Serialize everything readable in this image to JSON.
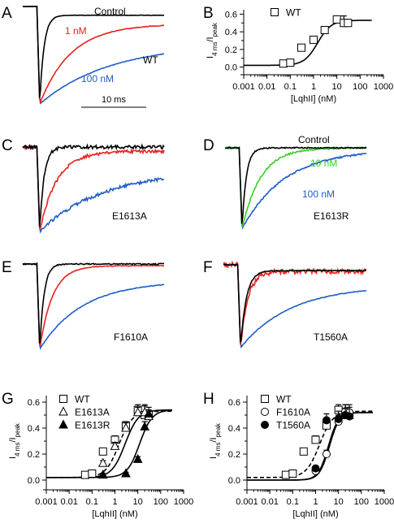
{
  "panels": [
    {
      "letter": "A",
      "cell_label": "WT",
      "trace_labels": [
        {
          "text": "Control",
          "color": "#000000"
        },
        {
          "text": "1 nM",
          "color": "#e8211c"
        },
        {
          "text": "100 nM",
          "color": "#1f5ec8"
        }
      ],
      "scale_bar": "10 ms"
    },
    {
      "letter": "C",
      "cell_label": "E1613A",
      "trace_labels": []
    },
    {
      "letter": "D",
      "cell_label": "E1613R",
      "trace_labels": [
        {
          "text": "Control",
          "color": "#000000"
        },
        {
          "text": "10 nM",
          "color": "#33d11f"
        },
        {
          "text": "100 nM",
          "color": "#1f5ec8"
        }
      ]
    },
    {
      "letter": "E",
      "cell_label": "F1610A",
      "trace_labels": []
    },
    {
      "letter": "F",
      "cell_label": "T1560A",
      "trace_labels": []
    }
  ],
  "colors": {
    "control": "#000000",
    "low": "#e8211c",
    "low_green": "#33d11f",
    "high": "#1f5ec8"
  },
  "chart_data": [
    {
      "panel": "B",
      "type": "scatter",
      "title": "",
      "xlabel": "[LqhII] (nM)",
      "ylabel": "I4 ms/Ipeak",
      "ylabel_main": "I",
      "ylabel_sub1": "4 ms",
      "ylabel_mid": "/I",
      "ylabel_sub2": "peak",
      "xscale": "log",
      "xlim": [
        0.001,
        1000
      ],
      "ylim": [
        -0.05,
        0.65
      ],
      "xticks": [
        "0.001",
        "0.01",
        "0.1",
        "1",
        "10",
        "100",
        "1000"
      ],
      "yticks": [
        "0.0",
        "0.2",
        "0.4",
        "0.6"
      ],
      "legend": "top-left",
      "series": [
        {
          "name": "WT",
          "marker": "open-square",
          "fit": "solid",
          "fit_params": {
            "base": 0.02,
            "top": 0.53,
            "ec50": 1.5,
            "hill": 1.5
          },
          "x": [
            0.05,
            0.1,
            0.3,
            1,
            3,
            10,
            20,
            30
          ],
          "y": [
            0.04,
            0.05,
            0.22,
            0.31,
            0.42,
            0.54,
            0.5,
            0.5
          ],
          "err": [
            0.01,
            0.01,
            0.02,
            0.03,
            0.03,
            0.04,
            0.08,
            0.04
          ]
        }
      ]
    },
    {
      "panel": "G",
      "type": "scatter",
      "title": "",
      "xlabel": "[LqhII] (nM)",
      "ylabel": "I4 ms/Ipeak",
      "ylabel_main": "I",
      "ylabel_sub1": "4 ms",
      "ylabel_mid": "/I",
      "ylabel_sub2": "peak",
      "xscale": "log",
      "xlim": [
        0.001,
        1000
      ],
      "ylim": [
        -0.05,
        0.65
      ],
      "xticks": [
        "0.001",
        "0.01",
        "0.1",
        "1",
        "10",
        "100",
        "1000"
      ],
      "yticks": [
        "0.0",
        "0.2",
        "0.4",
        "0.6"
      ],
      "legend": "top-left",
      "series": [
        {
          "name": "WT",
          "marker": "open-square",
          "fit": "dashed",
          "fit_params": {
            "base": 0.02,
            "top": 0.53,
            "ec50": 1.5,
            "hill": 1.5
          },
          "x": [
            0.05,
            0.1,
            0.3,
            1,
            3,
            10,
            20,
            30
          ],
          "y": [
            0.04,
            0.05,
            0.22,
            0.31,
            0.42,
            0.54,
            0.5,
            0.5
          ],
          "err": [
            0.01,
            0.01,
            0.02,
            0.03,
            0.03,
            0.04,
            0.08,
            0.04
          ]
        },
        {
          "name": "E1613A",
          "marker": "open-triangle",
          "fit": "solid",
          "fit_params": {
            "base": 0.02,
            "top": 0.54,
            "ec50": 2.8,
            "hill": 1.5
          },
          "x": [
            0.3,
            1,
            3,
            10,
            20,
            30
          ],
          "y": [
            0.13,
            0.26,
            0.4,
            0.52,
            0.52,
            0.49
          ],
          "err": [
            0.02,
            0.03,
            0.04,
            0.04,
            0.05,
            0.05
          ]
        },
        {
          "name": "E1613R",
          "marker": "filled-triangle",
          "fit": "solid",
          "fit_params": {
            "base": 0.02,
            "top": 0.54,
            "ec50": 12,
            "hill": 1.6
          },
          "x": [
            0.3,
            3,
            10,
            20,
            30
          ],
          "y": [
            0.04,
            0.05,
            0.16,
            0.41,
            0.51
          ],
          "err": [
            0.01,
            0.01,
            0.02,
            0.04,
            0.05
          ]
        }
      ]
    },
    {
      "panel": "H",
      "type": "scatter",
      "title": "",
      "xlabel": "[LqhII] (nM)",
      "ylabel": "I4 ms/Ipeak",
      "ylabel_main": "I",
      "ylabel_sub1": "4 ms",
      "ylabel_mid": "/I",
      "ylabel_sub2": "peak",
      "xscale": "log",
      "xlim": [
        0.001,
        1000
      ],
      "ylim": [
        -0.05,
        0.65
      ],
      "xticks": [
        "0.001",
        "0.01",
        "0.1",
        "1",
        "10",
        "100",
        "1000"
      ],
      "yticks": [
        "0.0",
        "0.2",
        "0.4",
        "0.6"
      ],
      "legend": "top-left",
      "series": [
        {
          "name": "WT",
          "marker": "open-square",
          "fit": "dashed",
          "fit_params": {
            "base": 0.02,
            "top": 0.53,
            "ec50": 1.5,
            "hill": 1.5
          },
          "x": [
            0.05,
            0.1,
            0.3,
            1,
            3,
            10,
            20,
            30
          ],
          "y": [
            0.04,
            0.05,
            0.22,
            0.31,
            0.42,
            0.54,
            0.5,
            0.5
          ],
          "err": [
            0.01,
            0.01,
            0.02,
            0.03,
            0.03,
            0.04,
            0.08,
            0.04
          ]
        },
        {
          "name": "F1610A",
          "marker": "open-circle",
          "fit": "solid",
          "fit_params": {
            "base": 0.0,
            "top": 0.52,
            "ec50": 4.0,
            "hill": 2.0
          },
          "x": [
            1,
            3,
            10,
            20,
            30
          ],
          "y": [
            0.07,
            0.2,
            0.45,
            0.53,
            0.52
          ],
          "err": [
            0.02,
            0.03,
            0.05,
            0.05,
            0.06
          ]
        },
        {
          "name": "T1560A",
          "marker": "filled-circle",
          "fit": "solid",
          "fit_params": {
            "base": 0.0,
            "top": 0.52,
            "ec50": 3.6,
            "hill": 2.0
          },
          "x": [
            1,
            3,
            10,
            20,
            30
          ],
          "y": [
            0.09,
            0.46,
            0.47,
            0.5,
            0.49
          ],
          "err": [
            0.02,
            0.05,
            0.06,
            0.05,
            0.07
          ]
        }
      ]
    }
  ]
}
